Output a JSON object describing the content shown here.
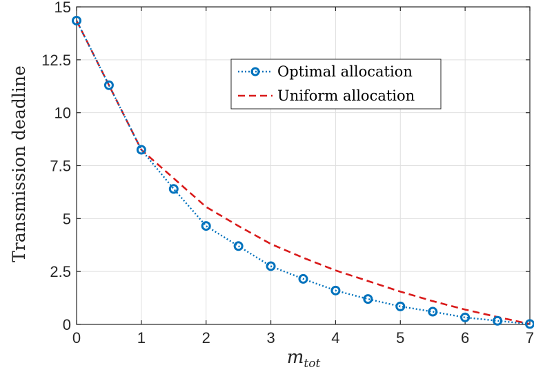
{
  "chart_data": {
    "type": "line",
    "xlabel_base": "m",
    "xlabel_sub": "tot",
    "ylabel": "Transmission deadline",
    "xlim": [
      0,
      7
    ],
    "ylim": [
      0,
      15
    ],
    "xticks": [
      0,
      1,
      2,
      3,
      4,
      5,
      6,
      7
    ],
    "yticks": [
      0,
      2.5,
      5,
      7.5,
      10,
      12.5,
      15
    ],
    "xtick_labels": [
      "0",
      "1",
      "2",
      "3",
      "4",
      "5",
      "6",
      "7"
    ],
    "ytick_labels": [
      "0",
      "2.5",
      "5",
      "7.5",
      "10",
      "12.5",
      "15"
    ],
    "grid": true,
    "legend": "top-center",
    "series": [
      {
        "name": "Optimal allocation",
        "color": "#0072BD",
        "style": "dotted-circle",
        "x": [
          0,
          0.5,
          1,
          1.5,
          2,
          2.5,
          3,
          3.5,
          4,
          4.5,
          5,
          5.5,
          6,
          6.5,
          7
        ],
        "y": [
          14.35,
          11.3,
          8.25,
          6.4,
          4.65,
          3.7,
          2.75,
          2.15,
          1.6,
          1.2,
          0.85,
          0.6,
          0.33,
          0.17,
          0.02
        ]
      },
      {
        "name": "Uniform allocation",
        "color": "#D91A1A",
        "style": "dashed",
        "x": [
          0,
          0.5,
          1,
          1.5,
          2,
          2.5,
          3,
          3.5,
          4,
          4.5,
          5,
          5.5,
          6,
          6.5,
          7
        ],
        "y": [
          14.35,
          11.3,
          8.25,
          6.9,
          5.55,
          4.65,
          3.8,
          3.15,
          2.55,
          2.05,
          1.55,
          1.1,
          0.7,
          0.35,
          0.02
        ]
      }
    ]
  }
}
